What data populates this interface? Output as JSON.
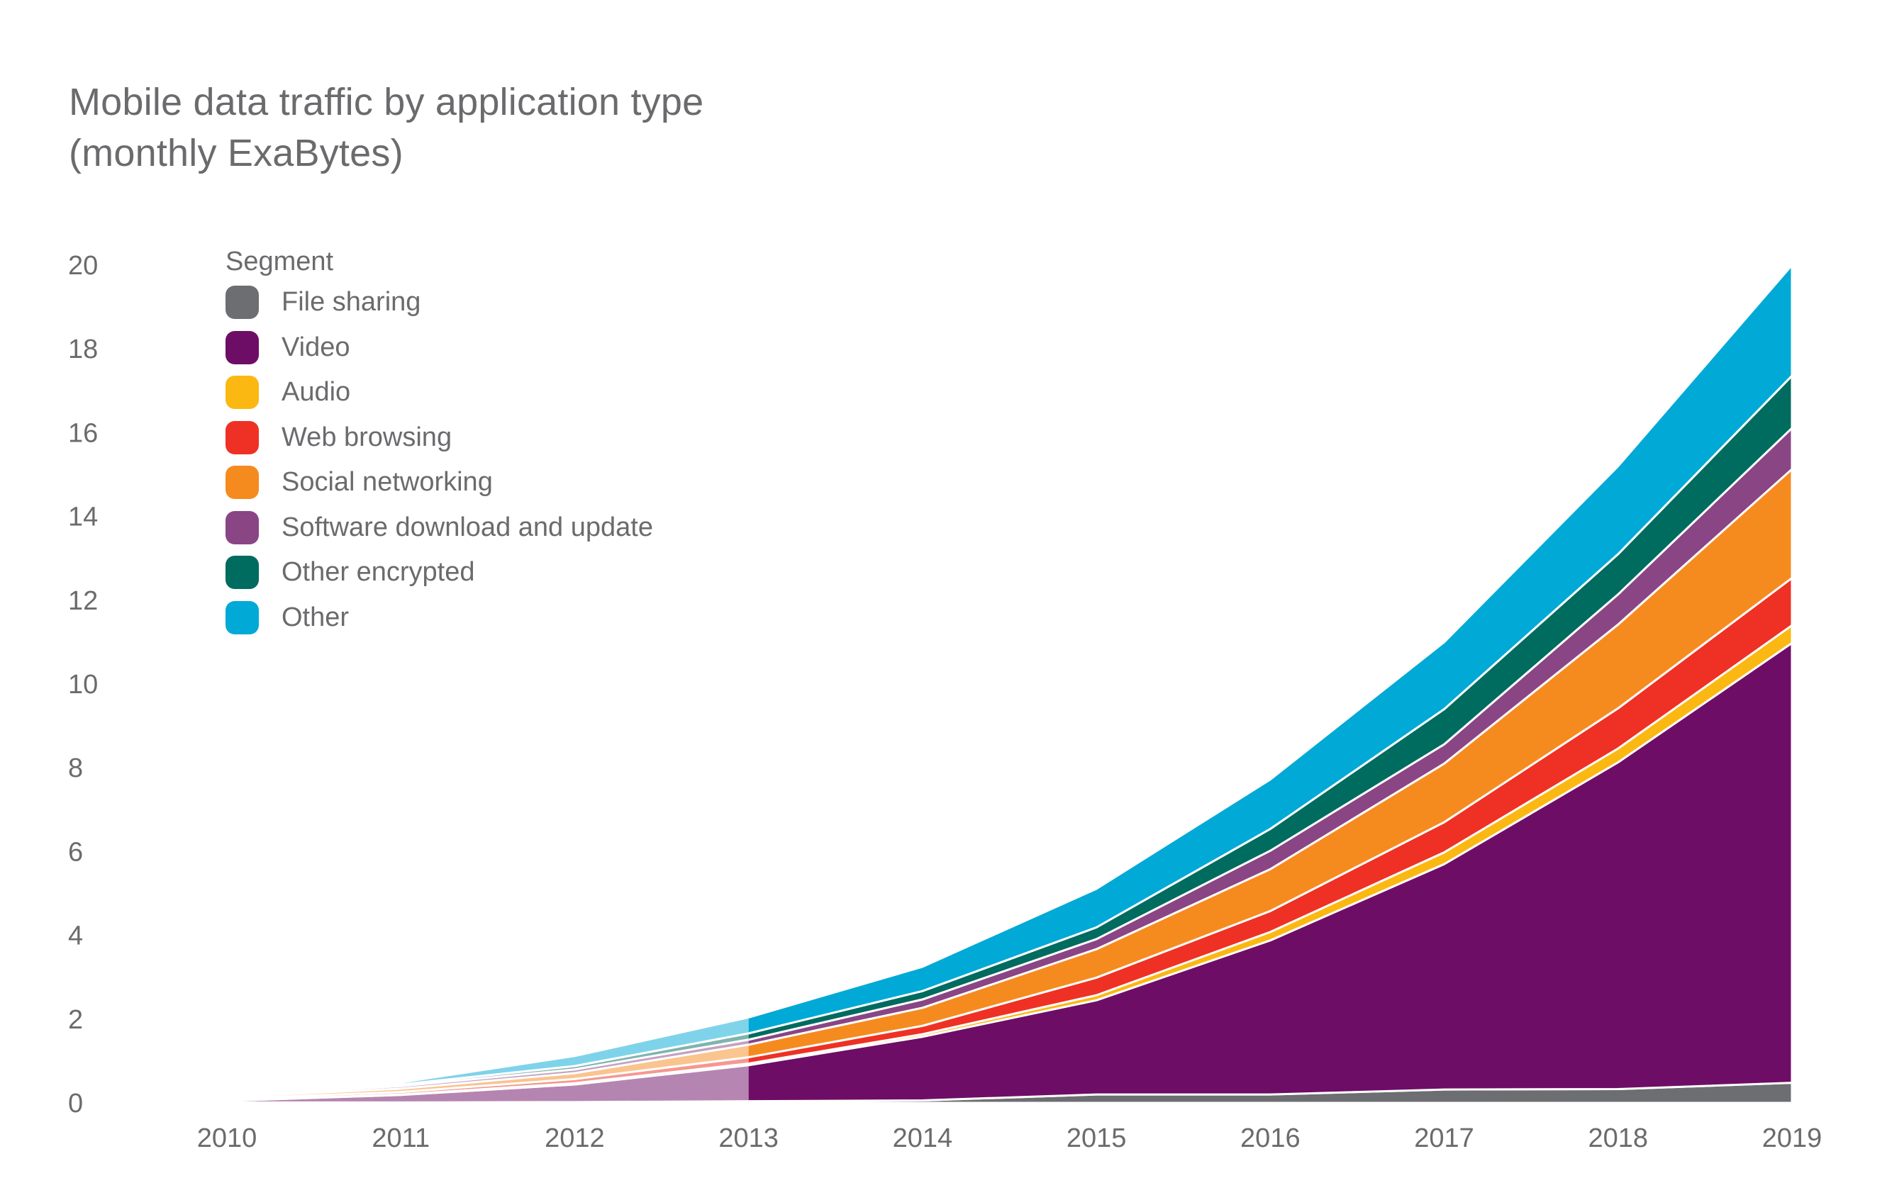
{
  "chart_data": {
    "type": "area",
    "stacked": true,
    "title": "Mobile data traffic by application type",
    "subtitle": "(monthly ExaBytes)",
    "x": [
      "2010",
      "2011",
      "2012",
      "2013",
      "2014",
      "2015",
      "2016",
      "2017",
      "2018",
      "2019"
    ],
    "ylim": [
      0,
      20
    ],
    "yticks": [
      "0",
      "2",
      "4",
      "6",
      "8",
      "10",
      "12",
      "14",
      "16",
      "18",
      "20"
    ],
    "grid": false,
    "legend": {
      "title": "Segment",
      "position": "top-left"
    },
    "historical_through": "2013",
    "series": [
      {
        "name": "File sharing",
        "color": "#6d6e71",
        "values": [
          0.01,
          0.01,
          0.02,
          0.04,
          0.06,
          0.2,
          0.2,
          0.32,
          0.33,
          0.48
        ]
      },
      {
        "name": "Video",
        "color": "#6e0d66",
        "values": [
          0.04,
          0.18,
          0.42,
          0.86,
          1.52,
          2.25,
          3.68,
          5.38,
          7.8,
          10.5
        ]
      },
      {
        "name": "Audio",
        "color": "#fbb812",
        "values": [
          0.01,
          0.01,
          0.03,
          0.04,
          0.06,
          0.12,
          0.2,
          0.28,
          0.33,
          0.42
        ]
      },
      {
        "name": "Web browsing",
        "color": "#ee3124",
        "values": [
          0.04,
          0.06,
          0.1,
          0.15,
          0.2,
          0.42,
          0.5,
          0.72,
          0.96,
          1.13
        ]
      },
      {
        "name": "Social networking",
        "color": "#f58b1f",
        "values": [
          0.04,
          0.08,
          0.14,
          0.3,
          0.43,
          0.68,
          1.0,
          1.4,
          2.0,
          2.6
        ]
      },
      {
        "name": "Software download and update",
        "color": "#8a4584",
        "values": [
          0.03,
          0.06,
          0.09,
          0.12,
          0.2,
          0.24,
          0.44,
          0.46,
          0.72,
          0.98
        ]
      },
      {
        "name": "Other encrypted",
        "color": "#006b5f",
        "values": [
          0.02,
          0.04,
          0.08,
          0.15,
          0.2,
          0.28,
          0.52,
          0.84,
          0.96,
          1.25
        ]
      },
      {
        "name": "Other",
        "color": "#00a9d6",
        "values": [
          0.01,
          0.05,
          0.24,
          0.38,
          0.58,
          0.92,
          1.18,
          1.6,
          2.1,
          2.64
        ]
      }
    ]
  }
}
